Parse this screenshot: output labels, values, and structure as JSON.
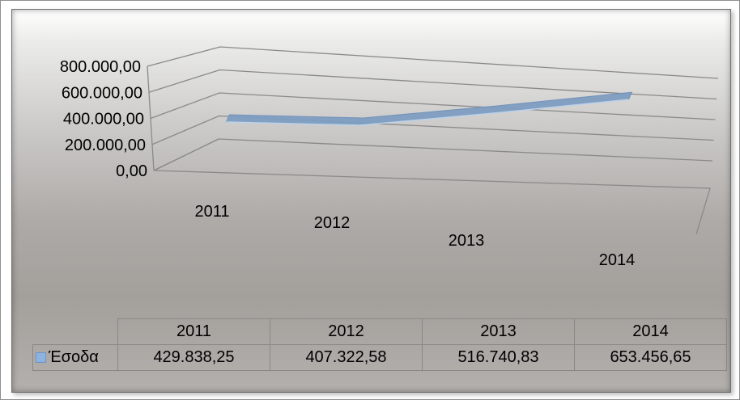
{
  "chart_data": {
    "type": "line",
    "view": "3d",
    "categories": [
      "2011",
      "2012",
      "2013",
      "2014"
    ],
    "series": [
      {
        "name": "Έσοδα",
        "values": [
          429838.25,
          407322.58,
          516740.83,
          653456.65
        ],
        "value_labels": [
          "429.838,25",
          "407.322,58",
          "516.740,83",
          "653.456,65"
        ],
        "color": "#7f9ec2"
      }
    ],
    "y_ticks": [
      0,
      200000,
      400000,
      600000,
      800000
    ],
    "y_tick_labels": [
      "0,00",
      "200.000,00",
      "400.000,00",
      "600.000,00",
      "800.000,00"
    ],
    "ylim": [
      0,
      800000
    ],
    "grid": true,
    "legend": "data-table"
  }
}
